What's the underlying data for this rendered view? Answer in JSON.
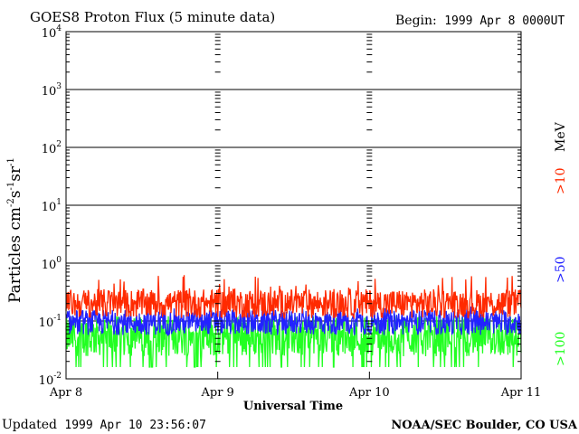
{
  "chart_data": {
    "type": "line",
    "title": "GOES8 Proton Flux (5 minute data)",
    "begin_label": "Begin:",
    "begin_value": "1999 Apr 8 0000UT",
    "xlabel": "Universal Time",
    "ylabel_main": "Particles cm",
    "ylabel_exp1": "-2",
    "ylabel_mid1": "s",
    "ylabel_exp2": "-1",
    "ylabel_mid2": "sr",
    "ylabel_exp3": "-1",
    "y_scale": "log",
    "ylim": [
      0.01,
      10000
    ],
    "yticks": [
      {
        "base": "10",
        "exp": "-2"
      },
      {
        "base": "10",
        "exp": "-1"
      },
      {
        "base": "10",
        "exp": "0"
      },
      {
        "base": "10",
        "exp": "1"
      },
      {
        "base": "10",
        "exp": "2"
      },
      {
        "base": "10",
        "exp": "3"
      },
      {
        "base": "10",
        "exp": "4"
      }
    ],
    "x_categories": [
      "Apr 8",
      "Apr 9",
      "Apr 10",
      "Apr 11"
    ],
    "xlim": [
      0,
      3
    ],
    "grid": true,
    "series": [
      {
        "name": ">10",
        "color": "#ff2a00",
        "median": 0.2,
        "spread": 0.25,
        "spike_max": 0.62
      },
      {
        "name": ">50",
        "color": "#2222ff",
        "median": 0.095,
        "spread": 0.22,
        "spike_max": 0.18
      },
      {
        "name": ">100",
        "color": "#22ff22",
        "median": 0.055,
        "spread": 0.35,
        "spike_max": 0.12,
        "floor": 0.016
      }
    ],
    "units_label": "MeV"
  },
  "footer": {
    "updated_label": "Updated",
    "updated_value": "1999 Apr 10 23:56:07",
    "credit": "NOAA/SEC Boulder, CO USA"
  }
}
